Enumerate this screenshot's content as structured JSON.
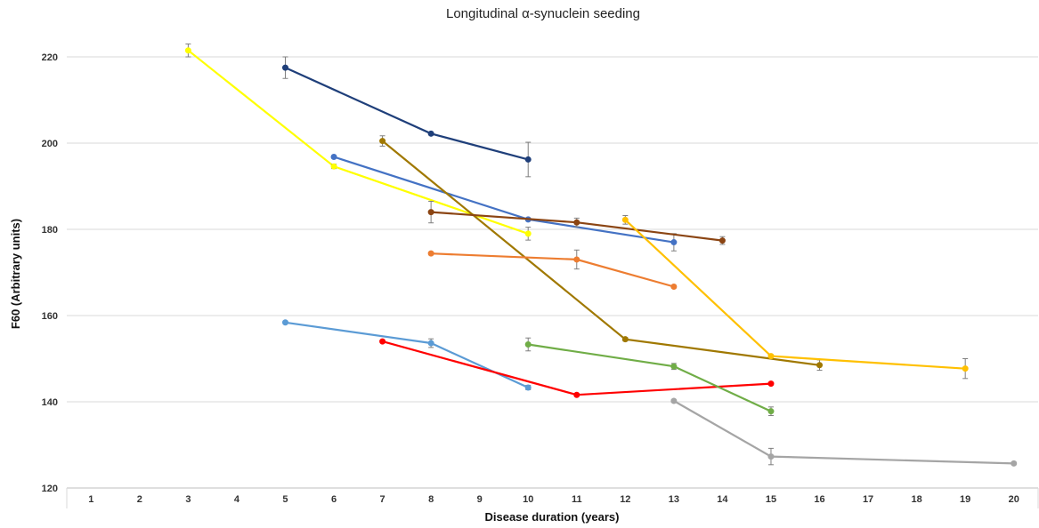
{
  "chart_data": {
    "type": "line",
    "title": "Longitudinal α-synuclein seeding",
    "xlabel": "Disease duration (years)",
    "ylabel": "F60 (Arbitrary units)",
    "ylim": [
      120,
      220
    ],
    "yticks": [
      120,
      140,
      160,
      180,
      200,
      220
    ],
    "categories": [
      "1",
      "2",
      "3",
      "4",
      "5",
      "6",
      "7",
      "8",
      "9",
      "10",
      "11",
      "12",
      "13",
      "14",
      "15",
      "16",
      "17",
      "18",
      "19",
      "20"
    ],
    "grid": "horizontal",
    "legend": "none",
    "series": [
      {
        "color": "#1F3F7A",
        "marker": "circle",
        "x": [
          "5",
          "8",
          "10"
        ],
        "y": [
          217.5,
          202.2,
          196.2
        ],
        "err": [
          2.5,
          0.3,
          4.0
        ]
      },
      {
        "color": "#FFFF00",
        "marker": "circle",
        "x": [
          "3",
          "6",
          "10"
        ],
        "y": [
          221.5,
          194.6,
          179.0
        ],
        "err": [
          1.5,
          0.5,
          1.5
        ]
      },
      {
        "color": "#4472C4",
        "marker": "circle",
        "x": [
          "6",
          "10",
          "13"
        ],
        "y": [
          196.8,
          182.3,
          177.0
        ],
        "err": [
          0.3,
          0.3,
          2.0
        ]
      },
      {
        "color": "#A07800",
        "marker": "circle",
        "x": [
          "7",
          "12",
          "16"
        ],
        "y": [
          200.5,
          154.5,
          148.5
        ],
        "err": [
          1.2,
          0.4,
          1.2
        ]
      },
      {
        "color": "#8B4513",
        "marker": "circle",
        "x": [
          "8",
          "11",
          "14"
        ],
        "y": [
          184.0,
          181.6,
          177.4
        ],
        "err": [
          2.5,
          1.0,
          0.9
        ]
      },
      {
        "color": "#ED7D31",
        "marker": "circle",
        "x": [
          "8",
          "11",
          "13"
        ],
        "y": [
          174.4,
          173.0,
          166.7
        ],
        "err": [
          0.3,
          2.2,
          0.3
        ]
      },
      {
        "color": "#FFC000",
        "marker": "circle",
        "x": [
          "12",
          "15",
          "19"
        ],
        "y": [
          182.2,
          150.6,
          147.7
        ],
        "err": [
          1.0,
          0.3,
          2.3
        ]
      },
      {
        "color": "#5B9BD5",
        "marker": "circle",
        "x": [
          "5",
          "8",
          "10"
        ],
        "y": [
          158.4,
          153.6,
          143.3
        ],
        "err": [
          0.3,
          1.0,
          0.5
        ]
      },
      {
        "color": "#FF0000",
        "marker": "circle",
        "x": [
          "7",
          "11",
          "15"
        ],
        "y": [
          154.0,
          141.6,
          144.2
        ],
        "err": [
          0.3,
          0.3,
          0.3
        ]
      },
      {
        "color": "#70AD47",
        "marker": "circle",
        "x": [
          "10",
          "13",
          "15"
        ],
        "y": [
          153.3,
          148.2,
          137.8
        ],
        "err": [
          1.5,
          0.7,
          1.0
        ]
      },
      {
        "color": "#A5A5A5",
        "marker": "circle",
        "x": [
          "13",
          "15",
          "20"
        ],
        "y": [
          140.2,
          127.3,
          125.7
        ],
        "err": [
          0.3,
          1.9,
          0.3
        ]
      }
    ]
  }
}
